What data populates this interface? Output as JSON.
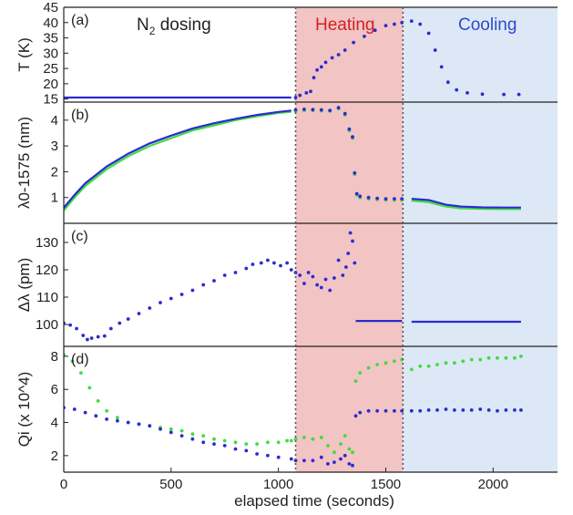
{
  "colors": {
    "heating_bg": "#f2c4c4",
    "cooling_bg": "#dde8f6",
    "series_blue": "#2b2bd0",
    "series_green": "#3fdc3f",
    "heating_text": "#d42020",
    "cooling_text": "#2b4bd0",
    "divider": "#555555"
  },
  "labels": {
    "n2_dosing_main": "N",
    "n2_dosing_sub": "2",
    "n2_dosing_rest": " dosing",
    "heating": "Heating",
    "cooling": "Cooling",
    "xlabel": "elapsed time (seconds)"
  },
  "chart_data": [
    {
      "panel": "(a)",
      "type": "line",
      "ylabel": "T (K)",
      "ylim": [
        14,
        45
      ],
      "yticks": [
        15,
        20,
        25,
        30,
        35,
        40,
        45
      ],
      "xlim": [
        0,
        2300
      ],
      "series": [
        {
          "color_key": "series_blue",
          "style": "line",
          "x": [
            0,
            1060
          ],
          "y": [
            15.5,
            15.5
          ]
        },
        {
          "color_key": "series_blue",
          "style": "markers",
          "x": [
            1080,
            1100,
            1130,
            1150,
            1165,
            1180,
            1200,
            1220,
            1250,
            1280,
            1310,
            1350,
            1400,
            1450,
            1500,
            1540,
            1575,
            1620,
            1660,
            1700,
            1730,
            1760,
            1790,
            1830,
            1880,
            1950,
            2050,
            2120
          ],
          "y": [
            15.5,
            16.2,
            17.0,
            17.5,
            22.0,
            24.5,
            25.5,
            27.0,
            28.5,
            29.5,
            31.0,
            33.5,
            35.5,
            37.5,
            39.0,
            39.5,
            40.0,
            40.5,
            39.5,
            36.5,
            31.0,
            25.5,
            20.5,
            18.0,
            17.0,
            16.6,
            16.5,
            16.5
          ]
        }
      ]
    },
    {
      "panel": "(b)",
      "type": "line",
      "ylabel": "λ0-1575 (nm)",
      "ylim": [
        0,
        4.7
      ],
      "yticks": [
        1,
        2,
        3,
        4
      ],
      "xlim": [
        0,
        2300
      ],
      "series": [
        {
          "color_key": "series_green",
          "style": "line",
          "x": [
            0,
            50,
            100,
            200,
            300,
            400,
            500,
            600,
            700,
            800,
            900,
            1000,
            1060
          ],
          "y": [
            0.5,
            1.0,
            1.45,
            2.1,
            2.6,
            3.0,
            3.3,
            3.6,
            3.8,
            4.0,
            4.15,
            4.28,
            4.33
          ]
        },
        {
          "color_key": "series_blue",
          "style": "line",
          "x": [
            0,
            50,
            100,
            200,
            300,
            400,
            500,
            600,
            700,
            800,
            900,
            1000,
            1060
          ],
          "y": [
            0.6,
            1.1,
            1.55,
            2.2,
            2.7,
            3.1,
            3.4,
            3.68,
            3.88,
            4.05,
            4.2,
            4.32,
            4.37
          ]
        },
        {
          "color_key": "series_green",
          "style": "markers",
          "x": [
            1080,
            1120,
            1160,
            1200,
            1240,
            1280,
            1310,
            1330,
            1345,
            1355,
            1365,
            1380,
            1420,
            1460,
            1500,
            1540,
            1575
          ],
          "y": [
            4.35,
            4.38,
            4.37,
            4.36,
            4.35,
            4.45,
            4.2,
            3.6,
            3.3,
            1.9,
            1.1,
            1.0,
            0.95,
            0.92,
            0.9,
            0.9,
            0.9
          ]
        },
        {
          "color_key": "series_blue",
          "style": "markers",
          "x": [
            1080,
            1120,
            1160,
            1200,
            1240,
            1280,
            1310,
            1330,
            1345,
            1355,
            1365,
            1380,
            1420,
            1460,
            1500,
            1540,
            1575
          ],
          "y": [
            4.4,
            4.42,
            4.41,
            4.4,
            4.38,
            4.48,
            4.25,
            3.65,
            3.35,
            1.95,
            1.15,
            1.05,
            1.0,
            0.97,
            0.95,
            0.95,
            0.95
          ]
        },
        {
          "color_key": "series_green",
          "style": "line",
          "x": [
            1620,
            1700,
            1780,
            1850,
            1950,
            2050,
            2130
          ],
          "y": [
            0.88,
            0.82,
            0.65,
            0.58,
            0.56,
            0.55,
            0.55
          ]
        },
        {
          "color_key": "series_blue",
          "style": "line",
          "x": [
            1620,
            1700,
            1780,
            1850,
            1950,
            2050,
            2130
          ],
          "y": [
            0.95,
            0.9,
            0.72,
            0.65,
            0.62,
            0.61,
            0.61
          ]
        }
      ]
    },
    {
      "panel": "(c)",
      "type": "scatter",
      "ylabel": "Δλ (pm)",
      "ylim": [
        92,
        137
      ],
      "yticks": [
        100,
        110,
        120,
        130
      ],
      "xlim": [
        0,
        2300
      ],
      "series": [
        {
          "color_key": "series_blue",
          "style": "markers",
          "x": [
            0,
            30,
            60,
            90,
            110,
            130,
            160,
            190,
            220,
            260,
            300,
            350,
            400,
            450,
            500,
            550,
            600,
            650,
            700,
            750,
            800,
            850,
            880,
            920,
            950,
            980,
            1010,
            1040,
            1060
          ],
          "y": [
            100.5,
            99.8,
            98.5,
            96.0,
            94.5,
            95.0,
            95.5,
            95.8,
            98.5,
            100.5,
            102.0,
            104.0,
            106.0,
            108.0,
            109.5,
            111.0,
            112.5,
            114.5,
            116.0,
            118.0,
            119.0,
            120.5,
            122.0,
            122.5,
            123.5,
            122.5,
            121.5,
            122.5,
            120.0
          ]
        },
        {
          "color_key": "series_blue",
          "style": "markers",
          "x": [
            1080,
            1100,
            1120,
            1140,
            1160,
            1180,
            1200,
            1220,
            1240,
            1260,
            1280,
            1300,
            1315,
            1325,
            1335,
            1345,
            1355
          ],
          "y": [
            119.0,
            118.0,
            115.0,
            119.0,
            117.5,
            114.5,
            113.5,
            116.5,
            112.5,
            117.0,
            123.5,
            118.0,
            121.0,
            126.0,
            133.5,
            130.5,
            122.5
          ]
        },
        {
          "color_key": "series_blue",
          "style": "line",
          "x": [
            1360,
            1575
          ],
          "y": [
            101.3,
            101.3
          ]
        },
        {
          "color_key": "series_blue",
          "style": "line",
          "x": [
            1620,
            2130
          ],
          "y": [
            101.0,
            101.0
          ]
        }
      ]
    },
    {
      "panel": "(d)",
      "type": "scatter",
      "ylabel": "Qi (x 10^4)",
      "ylim": [
        1.0,
        8.6
      ],
      "yticks": [
        2,
        4,
        6,
        8
      ],
      "xlim": [
        0,
        2300
      ],
      "xticks": [
        0,
        500,
        1000,
        1500,
        2000
      ],
      "xlabel": "elapsed time (seconds)",
      "series": [
        {
          "color_key": "series_green",
          "style": "markers",
          "x": [
            0,
            40,
            80,
            120,
            160,
            200,
            250,
            300,
            350,
            400,
            450,
            500,
            550,
            600,
            650,
            700,
            750,
            800,
            850,
            900,
            950,
            1000,
            1040,
            1060
          ],
          "y": [
            8.1,
            7.7,
            7.0,
            6.1,
            5.3,
            4.7,
            4.3,
            4.0,
            3.9,
            3.8,
            3.7,
            3.6,
            3.5,
            3.3,
            3.2,
            3.0,
            2.9,
            2.8,
            2.7,
            2.7,
            2.8,
            2.8,
            2.9,
            2.9
          ]
        },
        {
          "color_key": "series_blue",
          "style": "markers",
          "x": [
            0,
            50,
            100,
            150,
            200,
            250,
            300,
            350,
            400,
            450,
            500,
            550,
            600,
            650,
            700,
            750,
            800,
            850,
            900,
            950,
            1000,
            1060
          ],
          "y": [
            4.9,
            4.8,
            4.6,
            4.4,
            4.2,
            4.1,
            4.0,
            3.9,
            3.8,
            3.6,
            3.4,
            3.2,
            3.0,
            2.8,
            2.7,
            2.6,
            2.4,
            2.3,
            2.1,
            2.0,
            1.9,
            1.8
          ]
        },
        {
          "color_key": "series_green",
          "style": "markers",
          "x": [
            1080,
            1120,
            1160,
            1200,
            1230,
            1260,
            1290,
            1310,
            1330,
            1345,
            1360,
            1380,
            1420,
            1460,
            1500,
            1540,
            1575
          ],
          "y": [
            3.0,
            3.1,
            3.0,
            3.1,
            2.6,
            2.2,
            2.7,
            3.2,
            2.4,
            2.2,
            6.5,
            7.0,
            7.3,
            7.5,
            7.6,
            7.7,
            7.8
          ]
        },
        {
          "color_key": "series_blue",
          "style": "markers",
          "x": [
            1080,
            1120,
            1160,
            1200,
            1230,
            1260,
            1290,
            1310,
            1330,
            1345,
            1360,
            1380,
            1420,
            1460,
            1500,
            1540,
            1575
          ],
          "y": [
            1.7,
            1.7,
            1.7,
            1.9,
            1.5,
            1.6,
            1.8,
            2.0,
            1.5,
            1.4,
            4.4,
            4.6,
            4.7,
            4.7,
            4.7,
            4.7,
            4.7
          ]
        },
        {
          "color_key": "series_green",
          "style": "markers",
          "x": [
            1620,
            1660,
            1700,
            1740,
            1780,
            1820,
            1860,
            1900,
            1940,
            1980,
            2020,
            2060,
            2100,
            2130
          ],
          "y": [
            7.2,
            7.4,
            7.4,
            7.5,
            7.6,
            7.6,
            7.7,
            7.8,
            7.8,
            7.9,
            7.9,
            7.9,
            7.9,
            8.0
          ]
        },
        {
          "color_key": "series_blue",
          "style": "markers",
          "x": [
            1620,
            1660,
            1700,
            1740,
            1780,
            1820,
            1860,
            1900,
            1940,
            1980,
            2020,
            2060,
            2100,
            2130
          ],
          "y": [
            4.7,
            4.7,
            4.75,
            4.75,
            4.8,
            4.75,
            4.75,
            4.75,
            4.8,
            4.75,
            4.7,
            4.75,
            4.75,
            4.75
          ]
        }
      ]
    }
  ],
  "regions": {
    "heating_x": [
      1080,
      1580
    ],
    "cooling_x": [
      1580,
      2300
    ]
  }
}
